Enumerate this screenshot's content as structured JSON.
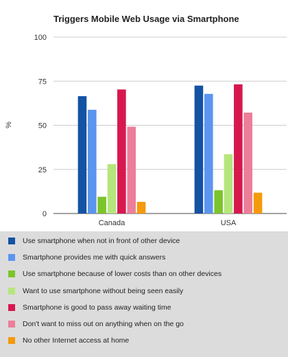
{
  "chart_data": {
    "type": "bar",
    "title": "Triggers Mobile Web Usage via Smartphone",
    "ylabel": "%",
    "xlabel": "",
    "ylim": [
      0,
      100
    ],
    "yticks": [
      0,
      25,
      50,
      75,
      100
    ],
    "grid": true,
    "legend_position": "bottom",
    "categories": [
      "Canada",
      "USA"
    ],
    "series": [
      {
        "name": "Use smartphone when not in front of other device",
        "color": "#1452a3",
        "values": [
          66.5,
          72.5
        ]
      },
      {
        "name": "Smartphone provides me with quick answers",
        "color": "#5b95ef",
        "values": [
          58.8,
          67.8
        ]
      },
      {
        "name": "Use smartphone because of lower costs than on other devices",
        "color": "#7cc42b",
        "values": [
          9.5,
          13.2
        ]
      },
      {
        "name": "Want to use smartphone without being seen easily",
        "color": "#b5e67c",
        "values": [
          28,
          33.6
        ]
      },
      {
        "name": "Smartphone is good to pass away waiting time",
        "color": "#d6184f",
        "values": [
          70.3,
          73.2
        ]
      },
      {
        "name": "Don't want to miss out on anything when on the go",
        "color": "#ec7e9a",
        "values": [
          49.2,
          57.2
        ]
      },
      {
        "name": "No other Internet access at home",
        "color": "#f59a0b",
        "values": [
          6.6,
          11.8
        ]
      }
    ]
  }
}
